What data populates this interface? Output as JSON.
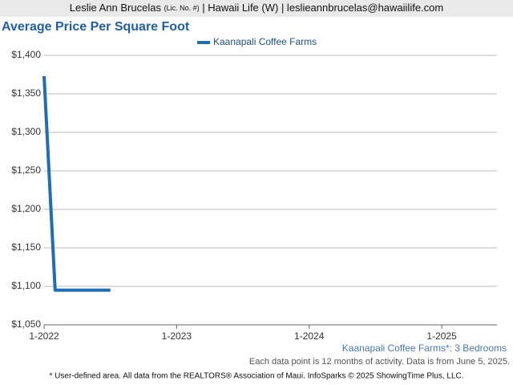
{
  "header": {
    "name": "Leslie Ann Brucelas",
    "license": "(Lic. No. #)",
    "rest": "| Hawaii Life (W) | leslieannbrucelas@hawaiilife.com"
  },
  "chart_data": {
    "type": "line",
    "title": "Average Price Per Square Foot",
    "x": [
      "1-2022",
      "2-2022",
      "3-2022",
      "4-2022",
      "5-2022",
      "6-2022",
      "7-2022"
    ],
    "series": [
      {
        "name": "Kaanapali Coffee Farms",
        "color": "#1f6db5",
        "values": [
          1373,
          1095,
          1095,
          1095,
          1095,
          1095,
          1095
        ]
      }
    ],
    "xlim": [
      "1-2022",
      "6-2025"
    ],
    "xticks": [
      "1-2022",
      "1-2023",
      "1-2024",
      "1-2025"
    ],
    "ylim": [
      1050,
      1400
    ],
    "yticks": [
      {
        "value": 1050,
        "label": "$1,050"
      },
      {
        "value": 1100,
        "label": "$1,100"
      },
      {
        "value": 1150,
        "label": "$1,150"
      },
      {
        "value": 1200,
        "label": "$1,200"
      },
      {
        "value": 1250,
        "label": "$1,250"
      },
      {
        "value": 1300,
        "label": "$1,300"
      },
      {
        "value": 1350,
        "label": "$1,350"
      },
      {
        "value": 1400,
        "label": "$1,400"
      }
    ],
    "grid": true,
    "legend": "top",
    "caption": "Kaanapali Coffee Farms*: 3 Bedrooms",
    "note": "Each data point is 12 months of activity. Data is from June 5, 2025.",
    "footer": "* User-defined area. All data from the REALTORS® Association of Maui. InfoSparks © 2025 ShowingTime Plus, LLC."
  }
}
